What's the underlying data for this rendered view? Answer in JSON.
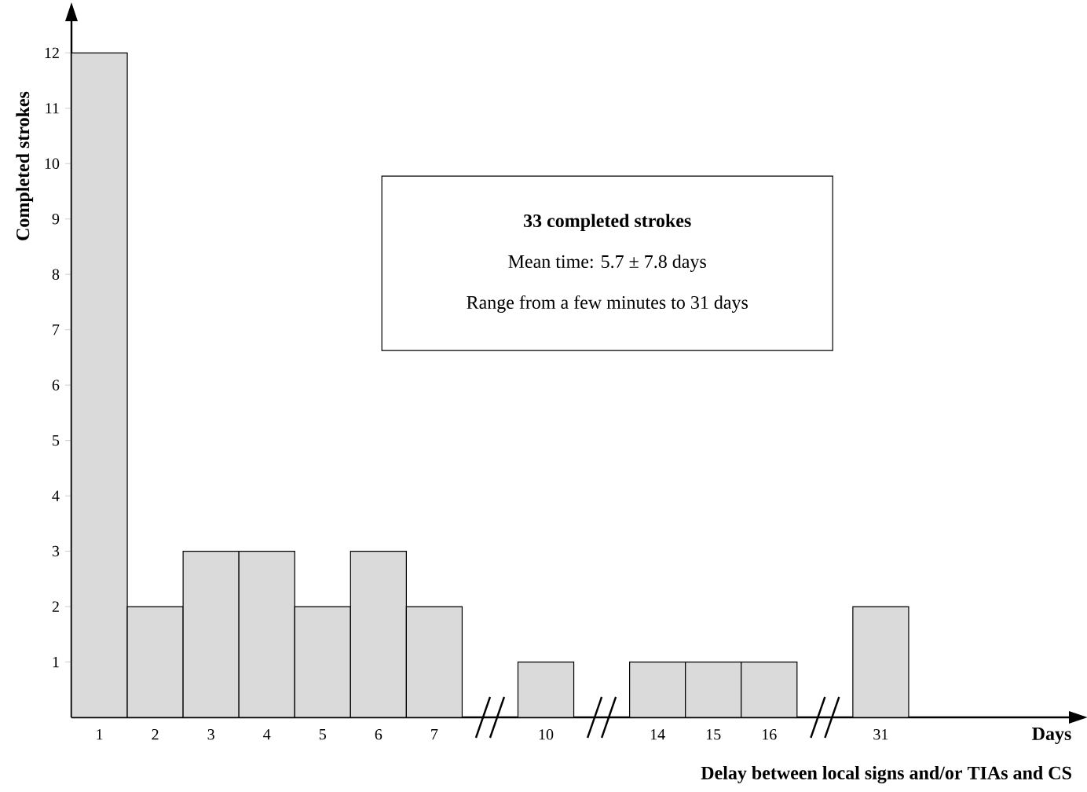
{
  "chart_data": {
    "type": "bar",
    "ylabel": "Completed strokes",
    "categories": [
      "1",
      "2",
      "3",
      "4",
      "5",
      "6",
      "7",
      null,
      "10",
      null,
      "14",
      "15",
      "16",
      null,
      "31"
    ],
    "values": [
      12,
      2,
      3,
      3,
      2,
      3,
      2,
      null,
      1,
      null,
      1,
      1,
      1,
      null,
      2
    ],
    "color": "#dadada",
    "ylim": [
      0,
      12.6
    ],
    "yticks": [
      1,
      2,
      3,
      4,
      5,
      6,
      7,
      8,
      9,
      10,
      11,
      12
    ],
    "annotations": [
      "33 completed strokes",
      "Mean time: 5.7 ± 7.8 days",
      "Range from a few minutes to 31 days",
      "Days",
      "Delay between local signs and/or TIAs and CS"
    ]
  }
}
